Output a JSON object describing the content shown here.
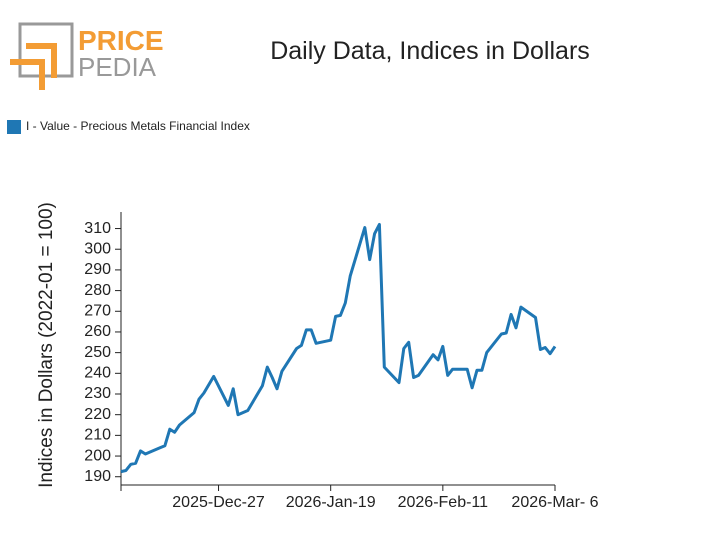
{
  "logo": {
    "top": "PRICE",
    "bottom": "PEDIA"
  },
  "chart_data": {
    "type": "line",
    "title": "Daily Data, Indices in Dollars",
    "y_label": "Indices in Dollars (2022-01 = 100)",
    "x": [
      "2025-12-07",
      "2025-12-08",
      "2025-12-09",
      "2025-12-10",
      "2025-12-11",
      "2025-12-12",
      "2025-12-15",
      "2025-12-16",
      "2025-12-17",
      "2025-12-18",
      "2025-12-19",
      "2025-12-22",
      "2025-12-23",
      "2025-12-24",
      "2025-12-26",
      "2025-12-29",
      "2025-12-30",
      "2025-12-31",
      "2026-01-01",
      "2026-01-02",
      "2026-01-05",
      "2026-01-06",
      "2026-01-07",
      "2026-01-08",
      "2026-01-09",
      "2026-01-12",
      "2026-01-13",
      "2026-01-14",
      "2026-01-15",
      "2026-01-16",
      "2026-01-19",
      "2026-01-20",
      "2026-01-21",
      "2026-01-22",
      "2026-01-23",
      "2026-01-26",
      "2026-01-27",
      "2026-01-28",
      "2026-01-29",
      "2026-01-30",
      "2026-02-02",
      "2026-02-03",
      "2026-02-04",
      "2026-02-05",
      "2026-02-06",
      "2026-02-09",
      "2026-02-10",
      "2026-02-11",
      "2026-02-12",
      "2026-02-13",
      "2026-02-16",
      "2026-02-17",
      "2026-02-18",
      "2026-02-19",
      "2026-02-20",
      "2026-02-23",
      "2026-02-24",
      "2026-02-25",
      "2026-02-26",
      "2026-02-27",
      "2026-03-02",
      "2026-03-03",
      "2026-03-04",
      "2026-03-05",
      "2026-03-06"
    ],
    "series": [
      {
        "name": "I - Value - Precious Metals Financial Index",
        "color": "#1f77b4",
        "values": [
          192.5,
          193,
          196,
          196.5,
          202.5,
          201,
          204,
          205,
          213,
          211.5,
          215,
          221,
          227.5,
          230.5,
          238.5,
          224.5,
          232.5,
          220,
          221,
          222,
          234,
          243,
          238,
          232.5,
          241,
          252,
          253.5,
          261,
          261,
          254.5,
          256,
          267.5,
          268,
          274,
          287,
          310.5,
          295,
          307.5,
          312,
          243,
          235.5,
          252,
          255,
          238,
          239,
          249,
          246.5,
          253,
          239,
          242,
          242,
          233,
          241.5,
          241.5,
          250,
          259,
          259.5,
          268.5,
          262,
          272,
          267,
          251.5,
          252.5,
          249.5,
          253
        ]
      }
    ],
    "xlim": [
      "2025-12-07",
      "2026-03-06"
    ],
    "xticks": [
      {
        "value": "2025-12-27",
        "label": "2025-Dec-27"
      },
      {
        "value": "2026-01-19",
        "label": "2026-Jan-19"
      },
      {
        "value": "2026-02-11",
        "label": "2026-Feb-11"
      },
      {
        "value": "2026-03-06",
        "label": "2026-Mar- 6"
      }
    ],
    "ylim": [
      186,
      318
    ],
    "yticks": [
      190,
      200,
      210,
      220,
      230,
      240,
      250,
      260,
      270,
      280,
      290,
      300,
      310
    ],
    "legend": "top-left"
  }
}
